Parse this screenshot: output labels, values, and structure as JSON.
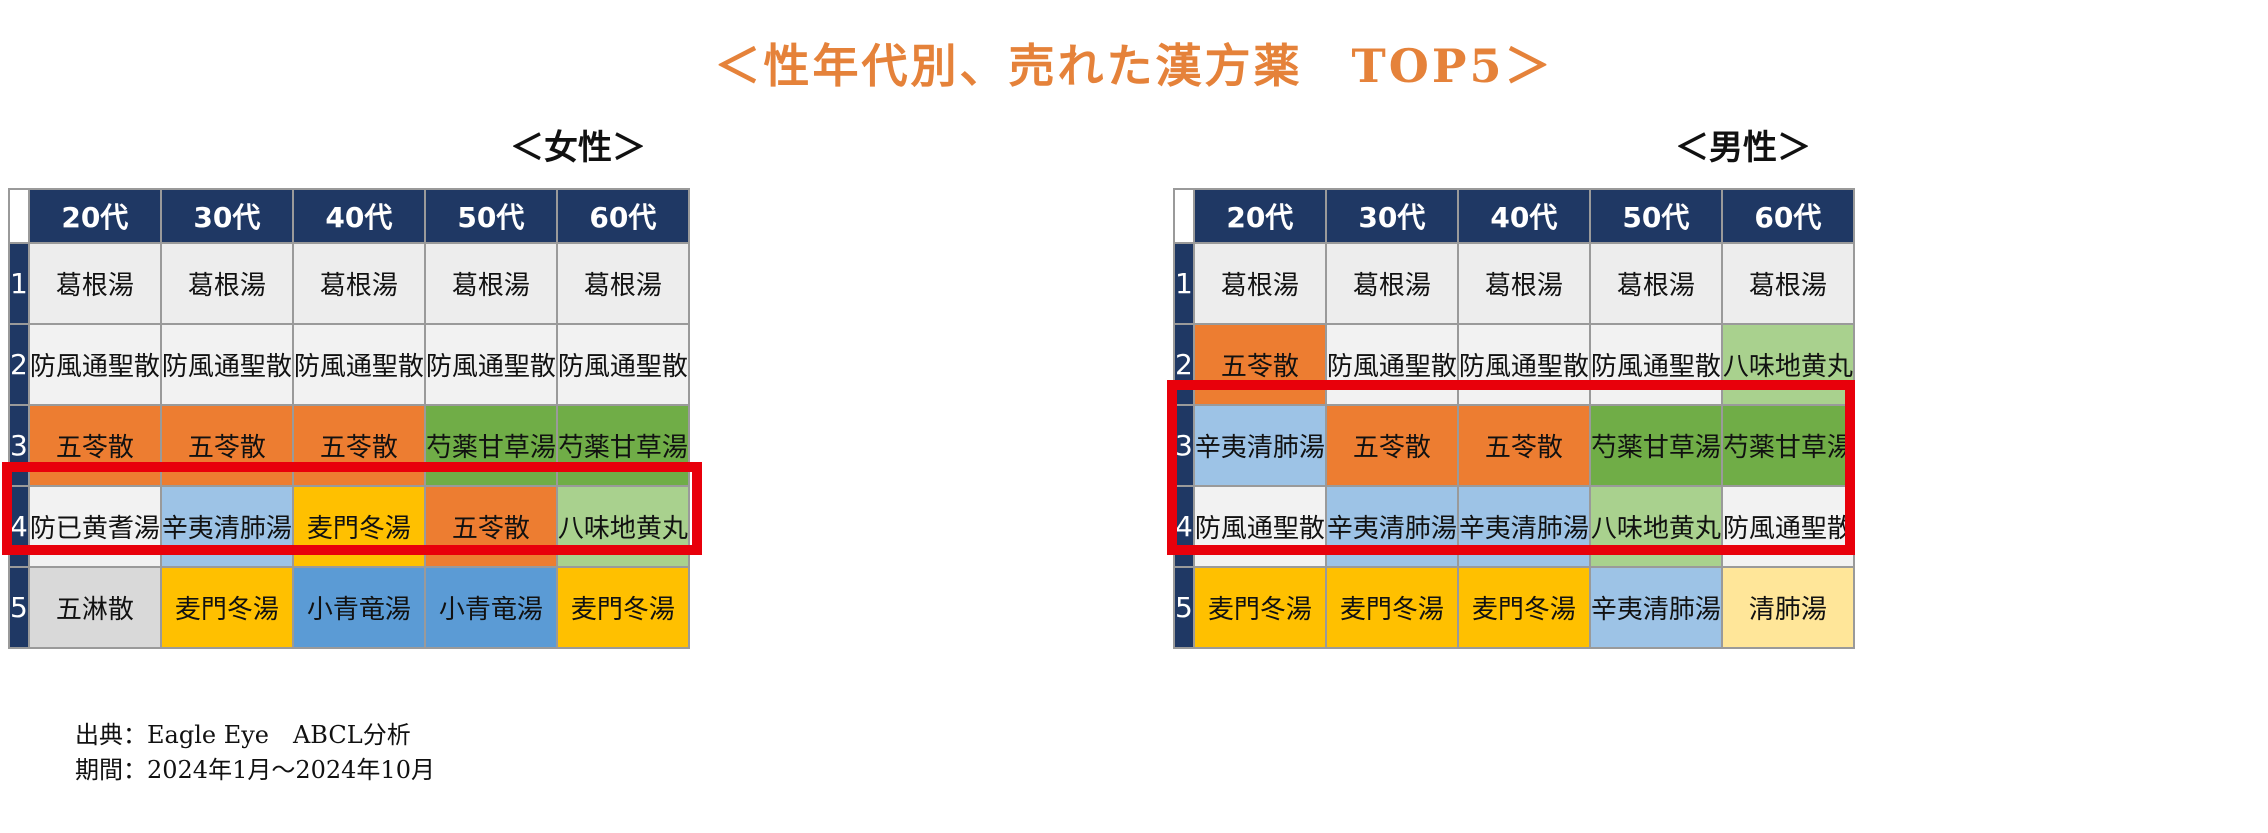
{
  "title": "＜性年代別、売れた漢方薬　TOP5＞",
  "colors": {
    "header_bg": "#1F3864",
    "title": "#E5823A",
    "highlight_border": "#E8000B",
    "葛根湯": "#EDEDED",
    "防風通聖散": "#F2F2F2",
    "五苓散": "#ED7D31",
    "芍薬甘草湯": "#70AD47",
    "八味地黄丸": "#A9D18E",
    "辛夷清肺湯": "#9DC3E6",
    "麦門冬湯": "#FFC000",
    "小青竜湯": "#5B9BD5",
    "清肺湯": "#FFE699",
    "防已黄耆湯": "#F2F2F2",
    "五淋散": "#D9D9D9"
  },
  "age_groups": [
    "20代",
    "30代",
    "40代",
    "50代",
    "60代"
  ],
  "ranks": [
    "1",
    "2",
    "3",
    "4",
    "5"
  ],
  "female": {
    "label": "＜女性＞",
    "rows": [
      [
        "葛根湯",
        "葛根湯",
        "葛根湯",
        "葛根湯",
        "葛根湯"
      ],
      [
        "防風通聖散",
        "防風通聖散",
        "防風通聖散",
        "防風通聖散",
        "防風通聖散"
      ],
      [
        "五苓散",
        "五苓散",
        "五苓散",
        "芍薬甘草湯",
        "芍薬甘草湯"
      ],
      [
        "防已黄耆湯",
        "辛夷清肺湯",
        "麦門冬湯",
        "五苓散",
        "八味地黄丸"
      ],
      [
        "五淋散",
        "麦門冬湯",
        "小青竜湯",
        "小青竜湯",
        "麦門冬湯"
      ]
    ]
  },
  "male": {
    "label": "＜男性＞",
    "rows": [
      [
        "葛根湯",
        "葛根湯",
        "葛根湯",
        "葛根湯",
        "葛根湯"
      ],
      [
        "五苓散",
        "防風通聖散",
        "防風通聖散",
        "防風通聖散",
        "八味地黄丸"
      ],
      [
        "辛夷清肺湯",
        "五苓散",
        "五苓散",
        "芍薬甘草湯",
        "芍薬甘草湯"
      ],
      [
        "防風通聖散",
        "辛夷清肺湯",
        "辛夷清肺湯",
        "八味地黄丸",
        "防風通聖散"
      ],
      [
        "麦門冬湯",
        "麦門冬湯",
        "麦門冬湯",
        "辛夷清肺湯",
        "清肺湯"
      ]
    ]
  },
  "footer": {
    "source": "出典：Eagle Eye　ABCL分析",
    "period": "期間：2024年1月～2024年10月"
  }
}
